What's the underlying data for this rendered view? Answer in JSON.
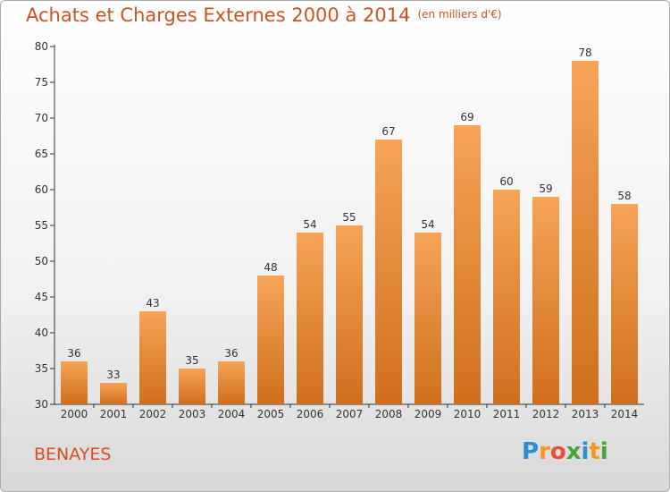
{
  "title": "Achats et Charges Externes 2000 à 2014",
  "unit": "(en milliers d'€)",
  "commune": "BENAYES",
  "logo": {
    "text": "Proxiti"
  },
  "colors": {
    "bar_top": "#f6a456",
    "bar_bottom": "#cf6f1e",
    "title": "#ca5420"
  },
  "chart_data": {
    "type": "bar",
    "title": "Achats et Charges Externes 2000 à 2014",
    "categories": [
      "2000",
      "2001",
      "2002",
      "2003",
      "2004",
      "2005",
      "2006",
      "2007",
      "2008",
      "2009",
      "2010",
      "2011",
      "2012",
      "2013",
      "2014"
    ],
    "values": [
      36,
      33,
      43,
      35,
      36,
      48,
      54,
      55,
      67,
      54,
      69,
      60,
      59,
      78,
      58
    ],
    "ylim": [
      30,
      80
    ],
    "yticks": [
      30,
      35,
      40,
      45,
      50,
      55,
      60,
      65,
      70,
      75,
      80
    ],
    "grid": false,
    "data_labels": true
  }
}
